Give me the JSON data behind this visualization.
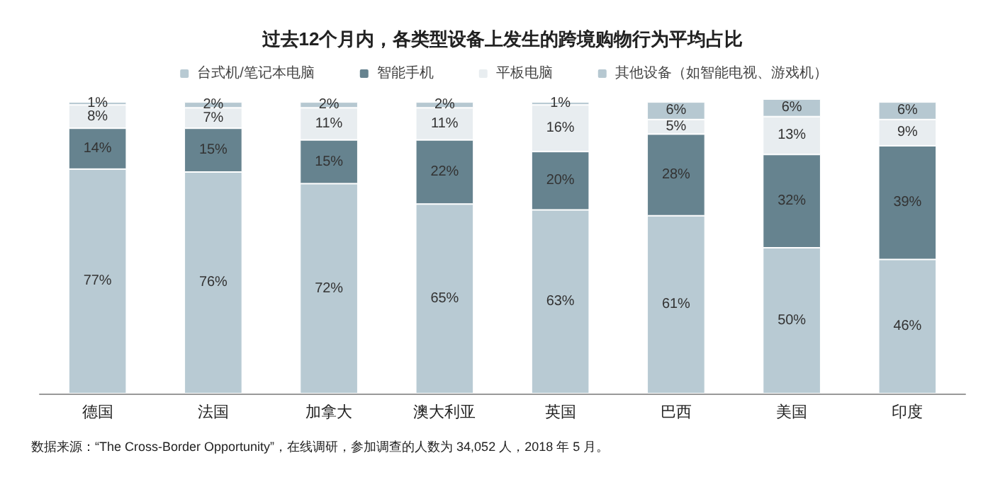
{
  "chart_data": {
    "type": "bar",
    "stacked": true,
    "title": "过去12个月内，各类型设备上发生的跨境购物行为平均占比",
    "categories": [
      "德国",
      "法国",
      "加拿大",
      "澳大利亚",
      "英国",
      "巴西",
      "美国",
      "印度"
    ],
    "legend": "top",
    "grid": false,
    "series": [
      {
        "name": "台式机/笔记本电脑",
        "color": "#b8cad3",
        "values": [
          77,
          76,
          72,
          65,
          63,
          61,
          50,
          46
        ],
        "value_labels": [
          "77%",
          "76%",
          "72%",
          "65%",
          "63%",
          "61%",
          "50%",
          "46%"
        ]
      },
      {
        "name": "智能手机",
        "color": "#66838f",
        "values": [
          14,
          15,
          15,
          22,
          20,
          28,
          32,
          39
        ],
        "value_labels": [
          "14%",
          "15%",
          "15%",
          "22%",
          "20%",
          "28%",
          "32%",
          "39%"
        ]
      },
      {
        "name": "平板电脑",
        "color": "#e8edf0",
        "values": [
          8,
          7,
          11,
          11,
          16,
          5,
          13,
          9
        ],
        "value_labels": [
          "8%",
          "7%",
          "11%",
          "11%",
          "16%",
          "5%",
          "13%",
          "9%"
        ]
      },
      {
        "name": "其他设备（如智能电视、游戏机）",
        "color": "#b6c8d1",
        "values": [
          1,
          2,
          2,
          2,
          1,
          6,
          6,
          6
        ],
        "value_labels": [
          "1%",
          "2%",
          "2%",
          "2%",
          "1%",
          "6%",
          "6%",
          "6%"
        ]
      }
    ],
    "annotations": [
      "数据来源：“The Cross-Border Opportunity”，在线调研，参加调查的人数为 34,052 人，2018 年 5 月。"
    ]
  }
}
